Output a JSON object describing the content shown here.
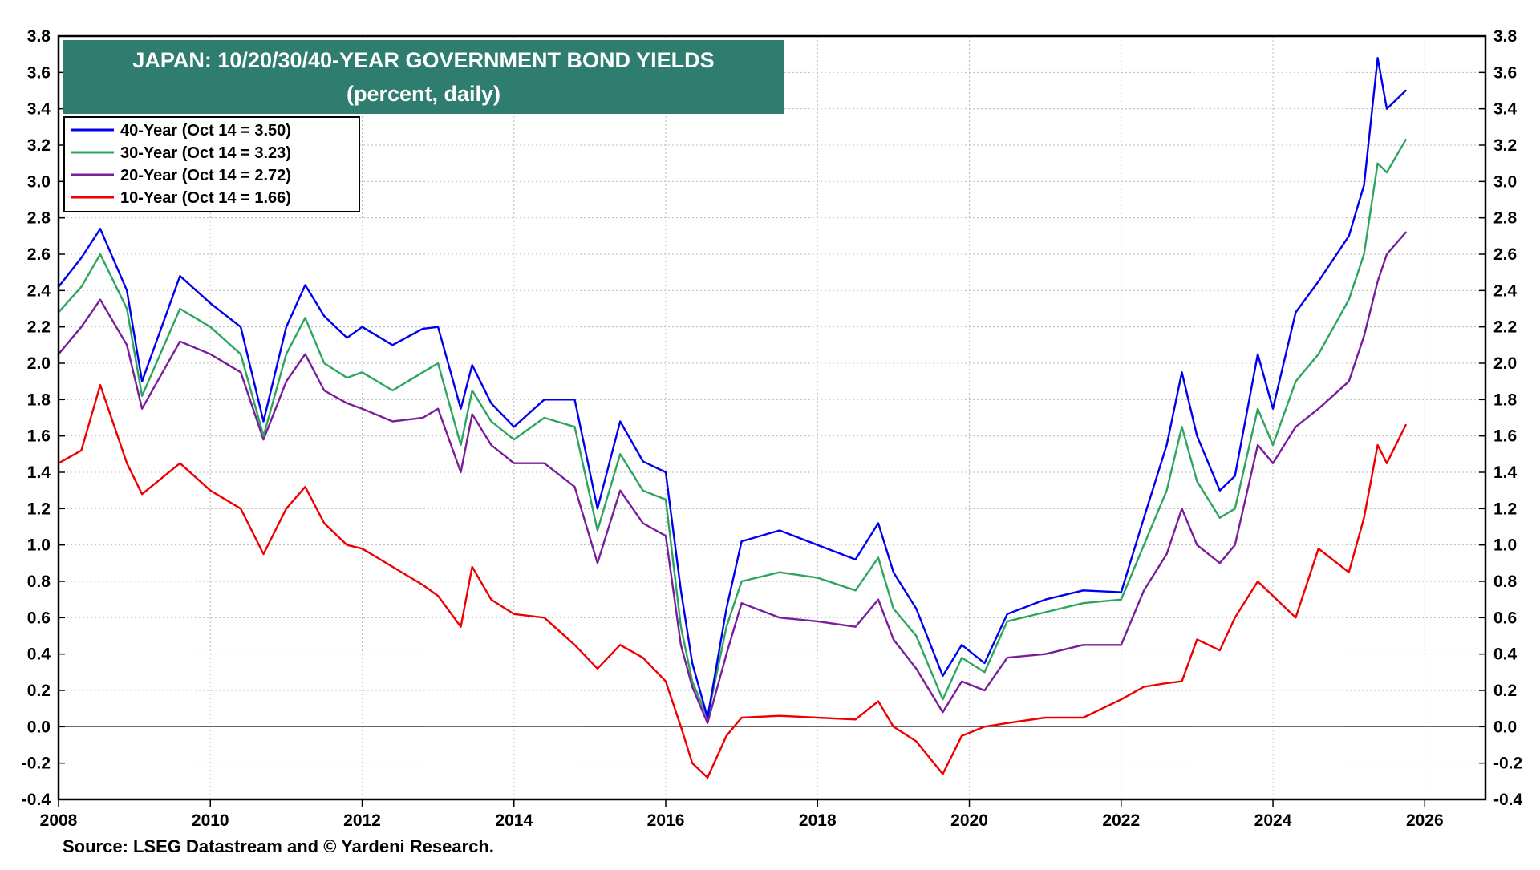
{
  "chart_data": {
    "type": "line",
    "title": "JAPAN: 10/20/30/40-YEAR GOVERNMENT BOND YIELDS",
    "subtitle": "(percent, daily)",
    "source": "Source: LSEG Datastream and © Yardeni Research.",
    "xlim": [
      2008,
      2026.8
    ],
    "ylim": [
      -0.4,
      3.8
    ],
    "x_ticks": [
      2008,
      2010,
      2012,
      2014,
      2016,
      2018,
      2020,
      2022,
      2024,
      2026
    ],
    "x_tick_labels": [
      "2008",
      "2010",
      "2012",
      "2014",
      "2016",
      "2018",
      "2020",
      "2022",
      "2024",
      "2026"
    ],
    "y_ticks": [
      -0.4,
      -0.2,
      0.0,
      0.2,
      0.4,
      0.6,
      0.8,
      1.0,
      1.2,
      1.4,
      1.6,
      1.8,
      2.0,
      2.2,
      2.4,
      2.6,
      2.8,
      3.0,
      3.2,
      3.4,
      3.6,
      3.8
    ],
    "y_tick_labels": [
      "-0.4",
      "-0.2",
      "0.0",
      "0.2",
      "0.4",
      "0.6",
      "0.8",
      "1.0",
      "1.2",
      "1.4",
      "1.6",
      "1.8",
      "2.0",
      "2.2",
      "2.4",
      "2.6",
      "2.8",
      "3.0",
      "3.2",
      "3.4",
      "3.6",
      "3.8"
    ],
    "grid": true,
    "legend_position": "top-left",
    "title_box_color": "#2e7d6f",
    "series": [
      {
        "name": "40-Year (Oct 14 = 3.50)",
        "color": "#0000ee",
        "x": [
          2008.0,
          2008.3,
          2008.55,
          2008.9,
          2009.1,
          2009.6,
          2010.0,
          2010.4,
          2010.7,
          2011.0,
          2011.25,
          2011.5,
          2011.8,
          2012.0,
          2012.4,
          2012.8,
          2013.0,
          2013.3,
          2013.45,
          2013.7,
          2014.0,
          2014.4,
          2014.8,
          2015.1,
          2015.4,
          2015.7,
          2016.0,
          2016.2,
          2016.35,
          2016.55,
          2016.8,
          2017.0,
          2017.5,
          2018.0,
          2018.5,
          2018.8,
          2019.0,
          2019.3,
          2019.65,
          2019.9,
          2020.2,
          2020.5,
          2021.0,
          2021.5,
          2022.0,
          2022.3,
          2022.6,
          2022.8,
          2023.0,
          2023.3,
          2023.5,
          2023.8,
          2024.0,
          2024.3,
          2024.6,
          2025.0,
          2025.2,
          2025.38,
          2025.5,
          2025.75
        ],
        "values": [
          2.42,
          2.58,
          2.74,
          2.4,
          1.9,
          2.48,
          2.33,
          2.2,
          1.68,
          2.2,
          2.43,
          2.26,
          2.14,
          2.2,
          2.1,
          2.19,
          2.2,
          1.75,
          1.99,
          1.78,
          1.65,
          1.8,
          1.8,
          1.2,
          1.68,
          1.46,
          1.4,
          0.75,
          0.35,
          0.05,
          0.65,
          1.02,
          1.08,
          1.0,
          0.92,
          1.12,
          0.85,
          0.65,
          0.28,
          0.45,
          0.35,
          0.62,
          0.7,
          0.75,
          0.74,
          1.15,
          1.55,
          1.95,
          1.6,
          1.3,
          1.38,
          2.05,
          1.75,
          2.28,
          2.45,
          2.7,
          2.98,
          3.68,
          3.4,
          3.5
        ]
      },
      {
        "name": "30-Year (Oct 14 = 3.23)",
        "color": "#2ea55e",
        "x": [
          2008.0,
          2008.3,
          2008.55,
          2008.9,
          2009.1,
          2009.6,
          2010.0,
          2010.4,
          2010.7,
          2011.0,
          2011.25,
          2011.5,
          2011.8,
          2012.0,
          2012.4,
          2012.8,
          2013.0,
          2013.3,
          2013.45,
          2013.7,
          2014.0,
          2014.4,
          2014.8,
          2015.1,
          2015.4,
          2015.7,
          2016.0,
          2016.2,
          2016.35,
          2016.55,
          2016.8,
          2017.0,
          2017.5,
          2018.0,
          2018.5,
          2018.8,
          2019.0,
          2019.3,
          2019.65,
          2019.9,
          2020.2,
          2020.5,
          2021.0,
          2021.5,
          2022.0,
          2022.3,
          2022.6,
          2022.8,
          2023.0,
          2023.3,
          2023.5,
          2023.8,
          2024.0,
          2024.3,
          2024.6,
          2025.0,
          2025.2,
          2025.38,
          2025.5,
          2025.75
        ],
        "values": [
          2.28,
          2.42,
          2.6,
          2.3,
          1.82,
          2.3,
          2.2,
          2.05,
          1.6,
          2.05,
          2.25,
          2.0,
          1.92,
          1.95,
          1.85,
          1.95,
          2.0,
          1.55,
          1.85,
          1.68,
          1.58,
          1.7,
          1.65,
          1.08,
          1.5,
          1.3,
          1.25,
          0.55,
          0.25,
          0.05,
          0.55,
          0.8,
          0.85,
          0.82,
          0.75,
          0.93,
          0.65,
          0.5,
          0.15,
          0.38,
          0.3,
          0.58,
          0.63,
          0.68,
          0.7,
          1.0,
          1.3,
          1.65,
          1.35,
          1.15,
          1.2,
          1.75,
          1.55,
          1.9,
          2.05,
          2.35,
          2.6,
          3.1,
          3.05,
          3.23
        ]
      },
      {
        "name": "20-Year (Oct 14 = 2.72)",
        "color": "#7a1d9c",
        "x": [
          2008.0,
          2008.3,
          2008.55,
          2008.9,
          2009.1,
          2009.6,
          2010.0,
          2010.4,
          2010.7,
          2011.0,
          2011.25,
          2011.5,
          2011.8,
          2012.0,
          2012.4,
          2012.8,
          2013.0,
          2013.3,
          2013.45,
          2013.7,
          2014.0,
          2014.4,
          2014.8,
          2015.1,
          2015.4,
          2015.7,
          2016.0,
          2016.2,
          2016.35,
          2016.55,
          2016.8,
          2017.0,
          2017.5,
          2018.0,
          2018.5,
          2018.8,
          2019.0,
          2019.3,
          2019.65,
          2019.9,
          2020.2,
          2020.5,
          2021.0,
          2021.5,
          2022.0,
          2022.3,
          2022.6,
          2022.8,
          2023.0,
          2023.3,
          2023.5,
          2023.8,
          2024.0,
          2024.3,
          2024.6,
          2025.0,
          2025.2,
          2025.38,
          2025.5,
          2025.75
        ],
        "values": [
          2.05,
          2.2,
          2.35,
          2.1,
          1.75,
          2.12,
          2.05,
          1.95,
          1.58,
          1.9,
          2.05,
          1.85,
          1.78,
          1.75,
          1.68,
          1.7,
          1.75,
          1.4,
          1.72,
          1.55,
          1.45,
          1.45,
          1.32,
          0.9,
          1.3,
          1.12,
          1.05,
          0.45,
          0.22,
          0.02,
          0.4,
          0.68,
          0.6,
          0.58,
          0.55,
          0.7,
          0.48,
          0.32,
          0.08,
          0.25,
          0.2,
          0.38,
          0.4,
          0.45,
          0.45,
          0.75,
          0.95,
          1.2,
          1.0,
          0.9,
          1.0,
          1.55,
          1.45,
          1.65,
          1.75,
          1.9,
          2.15,
          2.45,
          2.6,
          2.72
        ]
      },
      {
        "name": "10-Year (Oct 14 = 1.66)",
        "color": "#ee0000",
        "x": [
          2008.0,
          2008.3,
          2008.55,
          2008.9,
          2009.1,
          2009.6,
          2010.0,
          2010.4,
          2010.7,
          2011.0,
          2011.25,
          2011.5,
          2011.8,
          2012.0,
          2012.4,
          2012.8,
          2013.0,
          2013.3,
          2013.45,
          2013.7,
          2014.0,
          2014.4,
          2014.8,
          2015.1,
          2015.4,
          2015.7,
          2016.0,
          2016.2,
          2016.35,
          2016.55,
          2016.8,
          2017.0,
          2017.5,
          2018.0,
          2018.5,
          2018.8,
          2019.0,
          2019.3,
          2019.65,
          2019.9,
          2020.2,
          2020.5,
          2021.0,
          2021.5,
          2022.0,
          2022.3,
          2022.6,
          2022.8,
          2023.0,
          2023.3,
          2023.5,
          2023.8,
          2024.0,
          2024.3,
          2024.6,
          2025.0,
          2025.2,
          2025.38,
          2025.5,
          2025.75
        ],
        "values": [
          1.45,
          1.52,
          1.88,
          1.45,
          1.28,
          1.45,
          1.3,
          1.2,
          0.95,
          1.2,
          1.32,
          1.12,
          1.0,
          0.98,
          0.88,
          0.78,
          0.72,
          0.55,
          0.88,
          0.7,
          0.62,
          0.6,
          0.45,
          0.32,
          0.45,
          0.38,
          0.25,
          0.0,
          -0.2,
          -0.28,
          -0.05,
          0.05,
          0.06,
          0.05,
          0.04,
          0.14,
          0.0,
          -0.08,
          -0.26,
          -0.05,
          0.0,
          0.02,
          0.05,
          0.05,
          0.15,
          0.22,
          0.24,
          0.25,
          0.48,
          0.42,
          0.6,
          0.8,
          0.72,
          0.6,
          0.98,
          0.85,
          1.15,
          1.55,
          1.45,
          1.66
        ]
      }
    ]
  }
}
